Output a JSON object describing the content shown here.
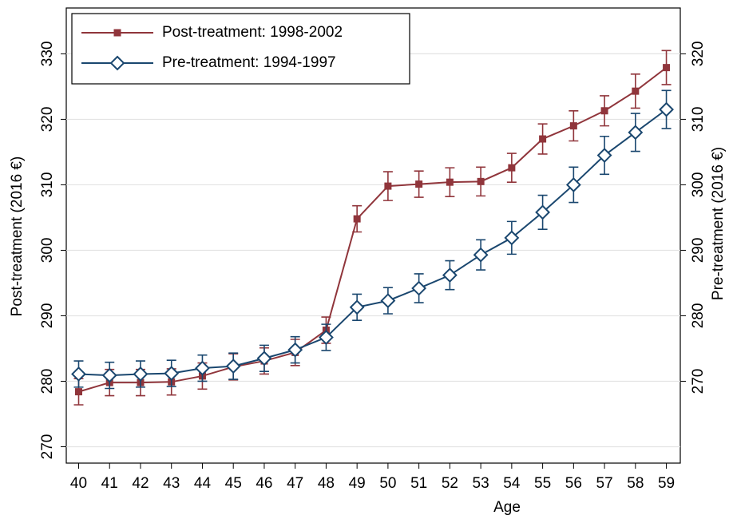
{
  "chart_data": {
    "type": "line",
    "x_label": "Age",
    "y_label": "Post-treatment (2016 €)",
    "y2_label": "Pre-treatment (2016 €)",
    "x": [
      40,
      41,
      42,
      43,
      44,
      45,
      46,
      47,
      48,
      49,
      50,
      51,
      52,
      53,
      54,
      55,
      56,
      57,
      58,
      59
    ],
    "xlim": [
      39.6,
      59.45
    ],
    "xticks": [
      40,
      41,
      42,
      43,
      44,
      45,
      46,
      47,
      48,
      49,
      50,
      51,
      52,
      53,
      54,
      55,
      56,
      57,
      58,
      59
    ],
    "ylim": [
      267.5,
      337
    ],
    "yticks": [
      270,
      280,
      290,
      300,
      310,
      320,
      330
    ],
    "y2lim": [
      257.5,
      327
    ],
    "y2ticks": [
      270,
      280,
      290,
      300,
      310,
      320
    ],
    "grid": true,
    "legend": "top-left",
    "series": [
      {
        "name": "Post-treatment: 1998-2002",
        "color": "#90353b",
        "marker": "square",
        "values": [
          278.4,
          279.8,
          279.8,
          279.9,
          280.8,
          282.2,
          283.1,
          284.4,
          287.8,
          304.8,
          309.8,
          310.1,
          310.4,
          310.5,
          312.6,
          317,
          319,
          321.3,
          324.3,
          327.9
        ],
        "errors": [
          2,
          2,
          2,
          2,
          2,
          2,
          2,
          2,
          2,
          2,
          2.2,
          2,
          2.2,
          2.2,
          2.2,
          2.3,
          2.3,
          2.3,
          2.6,
          2.6
        ]
      },
      {
        "name": "Pre-treatment: 1994-1997",
        "color": "#1a476f",
        "marker": "diamond",
        "axis": "y2",
        "values": [
          271.1,
          270.9,
          271.1,
          271.2,
          272,
          272.3,
          273.5,
          274.8,
          276.7,
          281.3,
          282.3,
          284.2,
          286.2,
          289.3,
          291.9,
          295.8,
          300,
          304.5,
          308,
          311.5
        ],
        "errors": [
          2,
          2,
          2,
          2,
          2,
          2,
          2,
          2,
          2,
          2,
          2,
          2.2,
          2.2,
          2.3,
          2.5,
          2.6,
          2.7,
          2.9,
          2.9,
          2.9
        ]
      }
    ]
  }
}
